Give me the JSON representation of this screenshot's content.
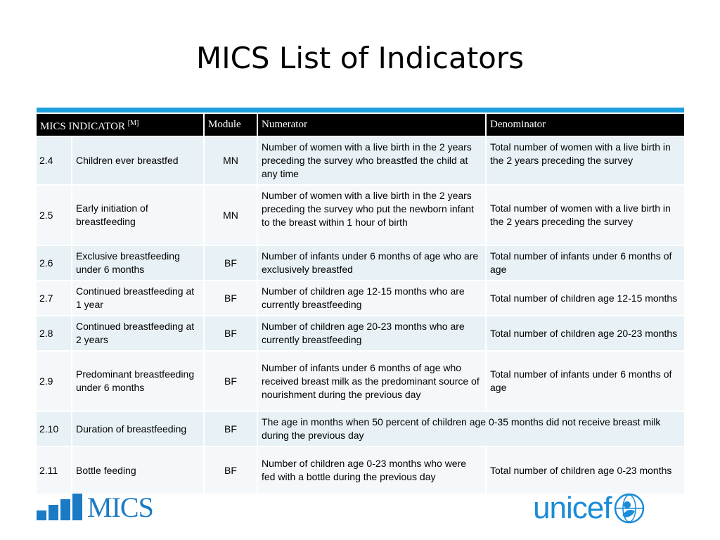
{
  "title": "MICS List of Indicators",
  "colors": {
    "accent_bar": "#1ea0dc",
    "header_bg": "#000000",
    "row_odd": "#e8f1f5",
    "row_even": "#f4f8fa",
    "logo_blue": "#1a8cd8"
  },
  "table": {
    "headers": {
      "indicator": "MICS INDICATOR",
      "indicator_sup": "[M]",
      "module": "Module",
      "numerator": "Numerator",
      "denominator": "Denominator"
    },
    "rows": [
      {
        "num": "2.4",
        "name": "Children ever breastfed",
        "module": "MN",
        "numerator": "Number of women with a live birth in the 2 years preceding the survey who breastfed the child at any time",
        "denominator": "Total number of women with a live birth in the 2 years preceding the survey"
      },
      {
        "num": "2.5",
        "name": "Early initiation of breastfeeding",
        "module": "MN",
        "numerator": "Number of women with a live birth in the 2 years preceding the survey who put the newborn infant to the breast within 1 hour of birth",
        "denominator": "Total number of women with a live birth in the 2 years preceding the survey"
      },
      {
        "num": "2.6",
        "name": "Exclusive breastfeeding under 6 months",
        "module": "BF",
        "numerator": "Number of infants under 6 months of age who are exclusively breastfed",
        "denominator": "Total number of infants under 6 months of age"
      },
      {
        "num": "2.7",
        "name": "Continued breastfeeding at 1 year",
        "module": "BF",
        "numerator": "Number of children age 12-15 months who are currently breastfeeding",
        "denominator": "Total number of children age 12-15 months"
      },
      {
        "num": "2.8",
        "name": "Continued breastfeeding at 2 years",
        "module": "BF",
        "numerator": "Number of children age 20-23 months who are currently breastfeeding",
        "denominator": "Total number of children age 20-23 months"
      },
      {
        "num": "2.9",
        "name": "Predominant breastfeeding under 6 months",
        "module": "BF",
        "numerator": "Number of infants under 6 months of age who received breast milk as the predominant source of nourishment during the previous day",
        "denominator": "Total number of infants under 6 months of age"
      },
      {
        "num": "2.10",
        "name": "Duration of breastfeeding",
        "module": "BF",
        "merged": "The age in months when 50 percent of children age 0-35 months did not receive breast milk during the previous day"
      },
      {
        "num": "2.11",
        "name": "Bottle feeding",
        "module": "BF",
        "numerator": "Number of children age 0-23 months who were fed with a bottle during the previous day",
        "denominator": "Total number of children age 0-23 months"
      }
    ]
  },
  "logos": {
    "mics": "MICS",
    "unicef": "unicef"
  }
}
